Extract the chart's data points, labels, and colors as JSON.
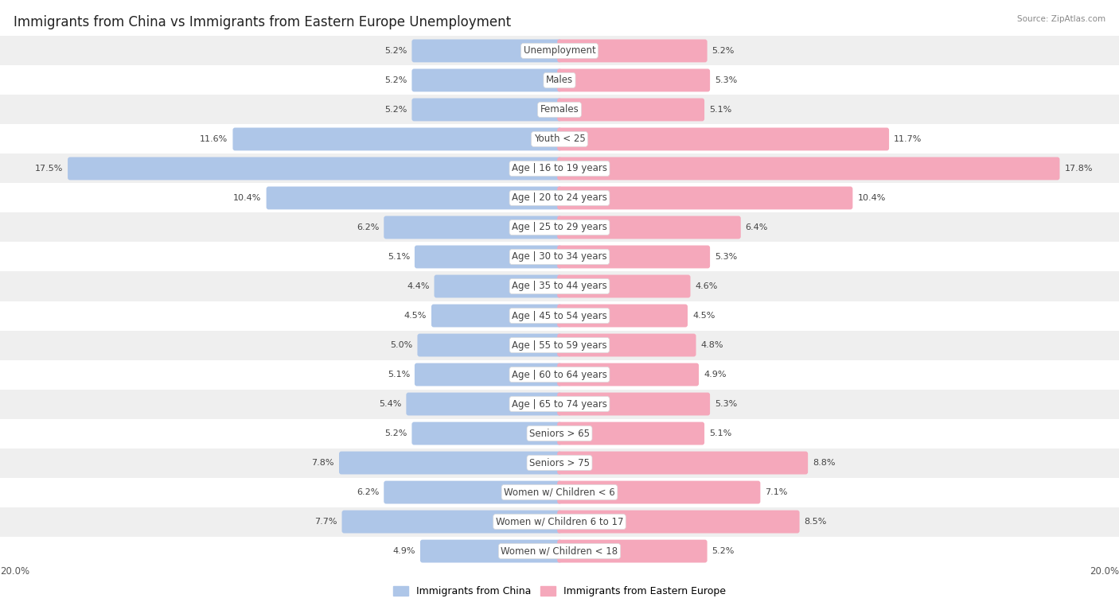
{
  "title": "Immigrants from China vs Immigrants from Eastern Europe Unemployment",
  "source": "Source: ZipAtlas.com",
  "categories": [
    "Unemployment",
    "Males",
    "Females",
    "Youth < 25",
    "Age | 16 to 19 years",
    "Age | 20 to 24 years",
    "Age | 25 to 29 years",
    "Age | 30 to 34 years",
    "Age | 35 to 44 years",
    "Age | 45 to 54 years",
    "Age | 55 to 59 years",
    "Age | 60 to 64 years",
    "Age | 65 to 74 years",
    "Seniors > 65",
    "Seniors > 75",
    "Women w/ Children < 6",
    "Women w/ Children 6 to 17",
    "Women w/ Children < 18"
  ],
  "china_values": [
    5.2,
    5.2,
    5.2,
    11.6,
    17.5,
    10.4,
    6.2,
    5.1,
    4.4,
    4.5,
    5.0,
    5.1,
    5.4,
    5.2,
    7.8,
    6.2,
    7.7,
    4.9
  ],
  "eastern_values": [
    5.2,
    5.3,
    5.1,
    11.7,
    17.8,
    10.4,
    6.4,
    5.3,
    4.6,
    4.5,
    4.8,
    4.9,
    5.3,
    5.1,
    8.8,
    7.1,
    8.5,
    5.2
  ],
  "china_color": "#aec6e8",
  "eastern_color": "#f5a8bb",
  "china_label": "Immigrants from China",
  "eastern_label": "Immigrants from Eastern Europe",
  "bg_row_light": "#efefef",
  "bg_row_white": "#ffffff",
  "axis_max": 20.0,
  "bar_height": 0.62,
  "title_fontsize": 12,
  "label_fontsize": 8.5,
  "value_fontsize": 8.0
}
